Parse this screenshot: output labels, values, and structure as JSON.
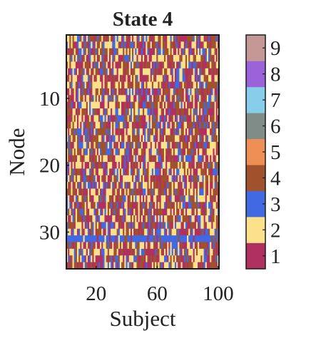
{
  "chart_data": {
    "type": "heatmap",
    "title": "State 4",
    "xlabel": "Subject",
    "ylabel": "Node",
    "x_range": [
      1,
      100
    ],
    "y_range": [
      1,
      35
    ],
    "x_ticks": [
      20,
      60,
      100
    ],
    "y_ticks": [
      10,
      20,
      30
    ],
    "y_direction": "top-to-bottom",
    "colorbar": {
      "levels": [
        1,
        2,
        3,
        4,
        5,
        6,
        7,
        8,
        9
      ],
      "labels": [
        "1",
        "2",
        "3",
        "4",
        "5",
        "6",
        "7",
        "8",
        "9"
      ],
      "colors": [
        "#b03060",
        "#fce08a",
        "#4169e1",
        "#a0522d",
        "#ee8f55",
        "#7f8c88",
        "#87ceeb",
        "#9b62d9",
        "#c49894"
      ]
    },
    "cell_distribution": "category 1-4 per (node, subject) cell, visually randomized; node 31 predominantly 3",
    "cell_value_weights": [
      0.28,
      0.3,
      0.16,
      0.26,
      0,
      0,
      0,
      0,
      0
    ],
    "row_overrides": [
      {
        "node": 31,
        "dominant_value": 3,
        "share": 0.8
      }
    ]
  }
}
